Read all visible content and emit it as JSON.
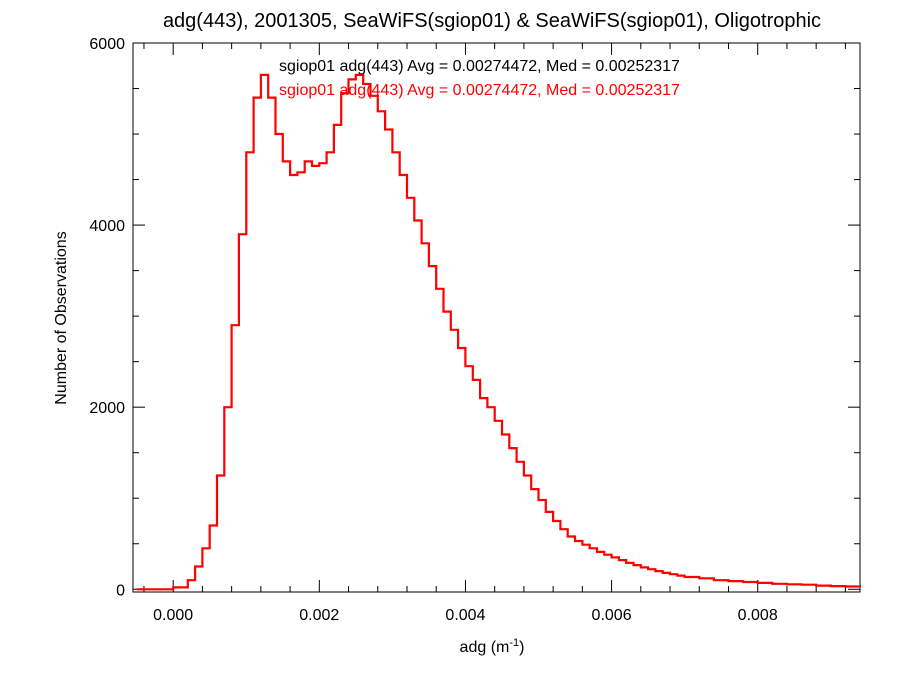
{
  "chart_data": {
    "type": "histogram-step",
    "title": "adg(443), 2001305, SeaWiFS(sgiop01) & SeaWiFS(sgiop01), Oligotrophic",
    "xlabel_base": "adg (m",
    "xlabel_sup": "-1",
    "xlabel_close": ")",
    "ylabel": "Number of Observations",
    "xlim": [
      -0.00055,
      0.0094
    ],
    "ylim": [
      -30,
      6000
    ],
    "x_ticks": [
      0.0,
      0.002,
      0.004,
      0.006,
      0.008
    ],
    "x_tick_labels": [
      "0.000",
      "0.002",
      "0.004",
      "0.006",
      "0.008"
    ],
    "y_ticks": [
      0,
      2000,
      4000,
      6000
    ],
    "y_tick_labels": [
      "0",
      "2000",
      "4000",
      "6000"
    ],
    "legend": [
      {
        "text": "sgiop01 adg(443) Avg = 0.00274472, Med = 0.00252317",
        "color": "#000000"
      },
      {
        "text": "sgiop01 adg(443) Avg = 0.00274472, Med = 0.00252317",
        "color": "#ff0000"
      }
    ],
    "series": [
      {
        "color": "#ff0000",
        "points": [
          [
            -0.0005,
            0
          ],
          [
            -0.0002,
            0
          ],
          [
            0.0,
            20
          ],
          [
            0.0002,
            100
          ],
          [
            0.0003,
            250
          ],
          [
            0.0004,
            450
          ],
          [
            0.0005,
            700
          ],
          [
            0.0006,
            1250
          ],
          [
            0.0007,
            2000
          ],
          [
            0.0008,
            2900
          ],
          [
            0.0009,
            3900
          ],
          [
            0.001,
            4800
          ],
          [
            0.0011,
            5400
          ],
          [
            0.0012,
            5650
          ],
          [
            0.0013,
            5400
          ],
          [
            0.0014,
            5000
          ],
          [
            0.0015,
            4700
          ],
          [
            0.0016,
            4550
          ],
          [
            0.0017,
            4580
          ],
          [
            0.0018,
            4700
          ],
          [
            0.0019,
            4650
          ],
          [
            0.002,
            4680
          ],
          [
            0.0021,
            4800
          ],
          [
            0.0022,
            5100
          ],
          [
            0.0023,
            5450
          ],
          [
            0.0024,
            5600
          ],
          [
            0.0025,
            5650
          ],
          [
            0.0026,
            5550
          ],
          [
            0.0027,
            5420
          ],
          [
            0.0028,
            5250
          ],
          [
            0.0029,
            5050
          ],
          [
            0.003,
            4800
          ],
          [
            0.0031,
            4550
          ],
          [
            0.0032,
            4300
          ],
          [
            0.0033,
            4050
          ],
          [
            0.0034,
            3800
          ],
          [
            0.0035,
            3550
          ],
          [
            0.0036,
            3300
          ],
          [
            0.0037,
            3050
          ],
          [
            0.0038,
            2850
          ],
          [
            0.0039,
            2650
          ],
          [
            0.004,
            2450
          ],
          [
            0.0041,
            2300
          ],
          [
            0.0042,
            2100
          ],
          [
            0.0043,
            2000
          ],
          [
            0.0044,
            1850
          ],
          [
            0.0045,
            1700
          ],
          [
            0.0046,
            1550
          ],
          [
            0.0047,
            1400
          ],
          [
            0.0048,
            1250
          ],
          [
            0.0049,
            1100
          ],
          [
            0.005,
            980
          ],
          [
            0.0051,
            850
          ],
          [
            0.0052,
            750
          ],
          [
            0.0053,
            660
          ],
          [
            0.0054,
            580
          ],
          [
            0.0055,
            530
          ],
          [
            0.0056,
            490
          ],
          [
            0.0057,
            450
          ],
          [
            0.0058,
            410
          ],
          [
            0.0059,
            380
          ],
          [
            0.006,
            350
          ],
          [
            0.0061,
            320
          ],
          [
            0.0062,
            290
          ],
          [
            0.0063,
            265
          ],
          [
            0.0064,
            240
          ],
          [
            0.0065,
            220
          ],
          [
            0.0066,
            200
          ],
          [
            0.0067,
            180
          ],
          [
            0.0068,
            165
          ],
          [
            0.0069,
            150
          ],
          [
            0.007,
            135
          ],
          [
            0.0072,
            120
          ],
          [
            0.0074,
            100
          ],
          [
            0.0076,
            90
          ],
          [
            0.0078,
            80
          ],
          [
            0.008,
            70
          ],
          [
            0.0082,
            60
          ],
          [
            0.0084,
            55
          ],
          [
            0.0086,
            50
          ],
          [
            0.0088,
            40
          ],
          [
            0.009,
            35
          ],
          [
            0.0092,
            30
          ],
          [
            0.0094,
            25
          ]
        ]
      }
    ]
  }
}
